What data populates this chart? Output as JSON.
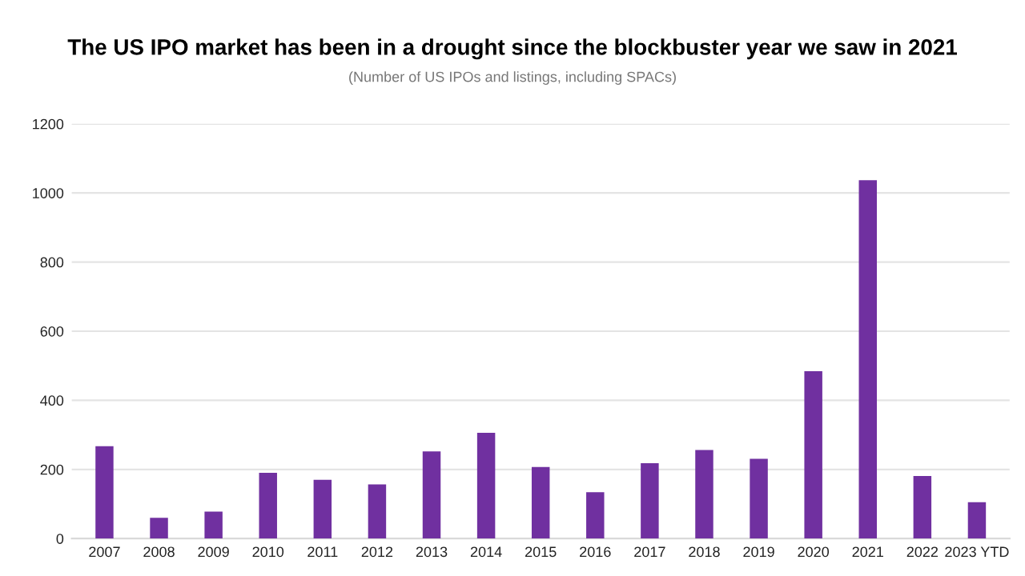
{
  "chart_data": {
    "type": "bar",
    "title": "The US IPO market has been in a drought since the blockbuster year we saw in 2021",
    "subtitle": "(Number of US IPOs and listings, including SPACs)",
    "categories": [
      "2007",
      "2008",
      "2009",
      "2010",
      "2011",
      "2012",
      "2013",
      "2014",
      "2015",
      "2016",
      "2017",
      "2018",
      "2019",
      "2020",
      "2021",
      "2022",
      "2023 YTD"
    ],
    "values": [
      267,
      60,
      78,
      190,
      170,
      157,
      252,
      306,
      207,
      134,
      218,
      256,
      231,
      484,
      1037,
      181,
      105
    ],
    "color": "#7030a0",
    "ylim": [
      0,
      1200
    ],
    "yticks": [
      0,
      200,
      400,
      600,
      800,
      1000,
      1200
    ],
    "grid": "y"
  }
}
